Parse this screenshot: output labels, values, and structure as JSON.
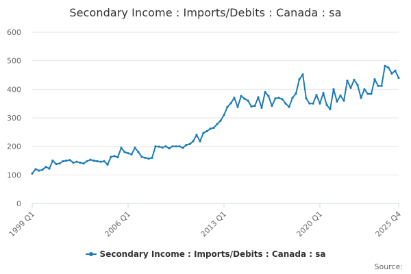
{
  "colors": {
    "series": "#1a7ab7",
    "grid": "#e6e6e6",
    "axis": "#ccd6eb",
    "text": "#666666"
  },
  "source_label": "Source:",
  "chart_data": {
    "type": "line",
    "title": "Secondary Income : Imports/Debits : Canada : sa",
    "xlabel": "",
    "ylabel": "",
    "ylim": [
      0,
      600
    ],
    "yticks": [
      "0",
      "100",
      "200",
      "300",
      "400",
      "500",
      "600"
    ],
    "x_start": "1999 Q1",
    "x_end": "2025 Q4",
    "xticks": [
      "1999 Q1",
      "2006 Q1",
      "2013 Q1",
      "2020 Q1",
      "2025 Q4"
    ],
    "grid": true,
    "legend_position": "bottom-center",
    "series": [
      {
        "name": "Secondary Income : Imports/Debits : Canada : sa",
        "values": [
          105,
          120,
          115,
          118,
          128,
          122,
          150,
          138,
          140,
          148,
          150,
          152,
          143,
          146,
          143,
          140,
          148,
          153,
          150,
          148,
          146,
          148,
          136,
          163,
          166,
          162,
          195,
          180,
          176,
          172,
          195,
          180,
          163,
          160,
          157,
          160,
          200,
          199,
          196,
          200,
          193,
          200,
          200,
          200,
          195,
          205,
          208,
          218,
          240,
          218,
          247,
          253,
          262,
          265,
          278,
          290,
          310,
          338,
          351,
          370,
          338,
          376,
          367,
          360,
          340,
          342,
          372,
          335,
          390,
          376,
          342,
          368,
          370,
          365,
          350,
          338,
          370,
          385,
          435,
          452,
          368,
          350,
          350,
          380,
          350,
          387,
          345,
          330,
          400,
          357,
          378,
          360,
          430,
          405,
          433,
          415,
          370,
          400,
          384,
          384,
          435,
          412,
          412,
          482,
          476,
          455,
          465,
          440
        ]
      }
    ]
  }
}
